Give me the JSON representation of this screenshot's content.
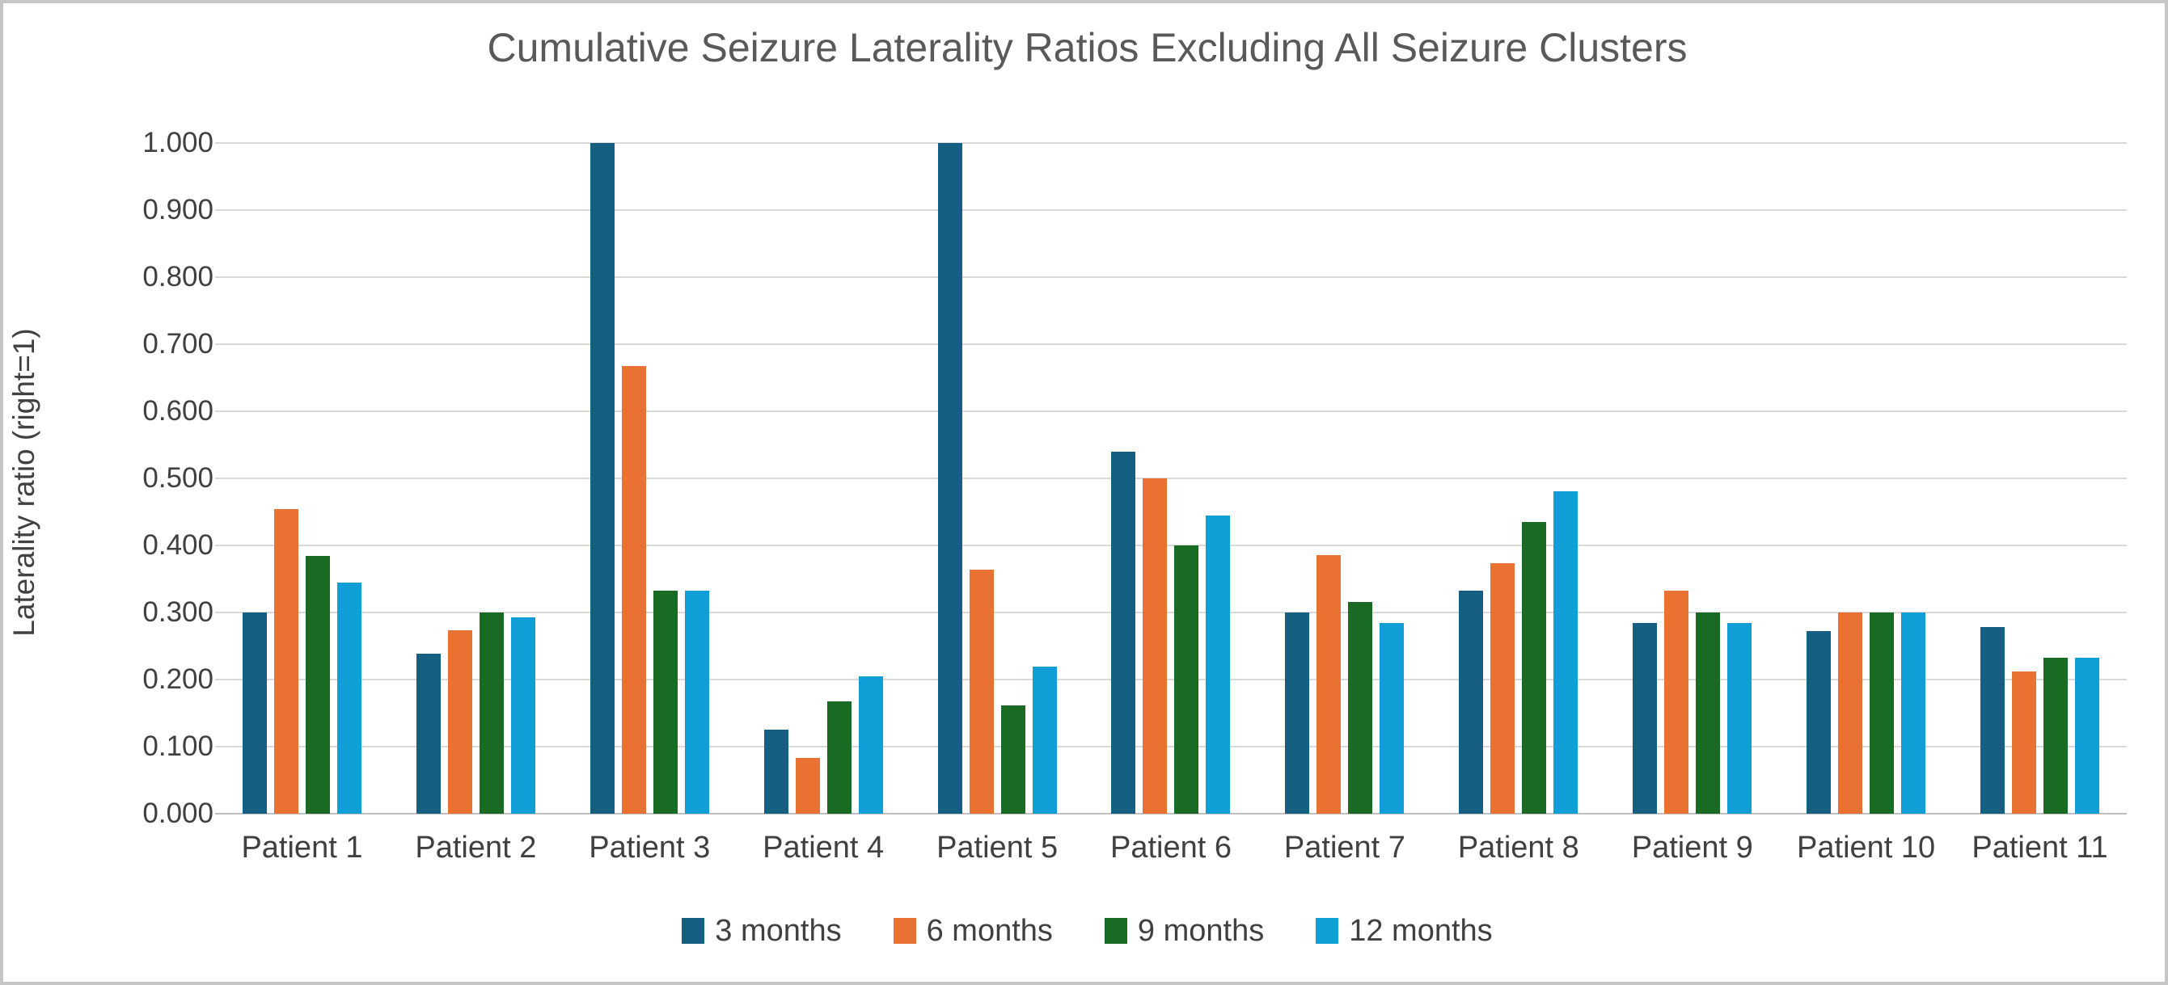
{
  "chart_data": {
    "type": "bar",
    "title": "Cumulative Seizure Laterality Ratios Excluding All Seizure Clusters",
    "ylabel": "Laterality ratio (right=1)",
    "xlabel": "",
    "categories": [
      "Patient 1",
      "Patient 2",
      "Patient 3",
      "Patient 4",
      "Patient 5",
      "Patient 6",
      "Patient 7",
      "Patient 8",
      "Patient 9",
      "Patient 10",
      "Patient 11"
    ],
    "series": [
      {
        "name": "3 months",
        "color": "#156082",
        "values": [
          0.3,
          0.238,
          1.0,
          0.125,
          1.0,
          0.54,
          0.3,
          0.333,
          0.284,
          0.272,
          0.278
        ]
      },
      {
        "name": "6 months",
        "color": "#E97132",
        "values": [
          0.454,
          0.273,
          0.667,
          0.083,
          0.364,
          0.5,
          0.385,
          0.374,
          0.333,
          0.3,
          0.212
        ]
      },
      {
        "name": "9 months",
        "color": "#196B24",
        "values": [
          0.384,
          0.3,
          0.333,
          0.167,
          0.162,
          0.4,
          0.316,
          0.435,
          0.3,
          0.3,
          0.232
        ]
      },
      {
        "name": "12 months",
        "color": "#0F9ED5",
        "values": [
          0.345,
          0.293,
          0.333,
          0.205,
          0.219,
          0.444,
          0.284,
          0.481,
          0.284,
          0.3,
          0.233
        ]
      }
    ],
    "ylim": [
      0.0,
      1.0
    ],
    "y_ticks": [
      "1.000",
      "0.900",
      "0.800",
      "0.700",
      "0.600",
      "0.500",
      "0.400",
      "0.300",
      "0.200",
      "0.100",
      "0.000"
    ],
    "grid": true,
    "legend_position": "bottom",
    "colors": {
      "gridline": "#d9d9d9",
      "axis_line": "#bfbfbf",
      "text": "#404040",
      "title_text": "#595959",
      "background": "#ffffff",
      "frame_border": "#c6c6c6"
    }
  }
}
